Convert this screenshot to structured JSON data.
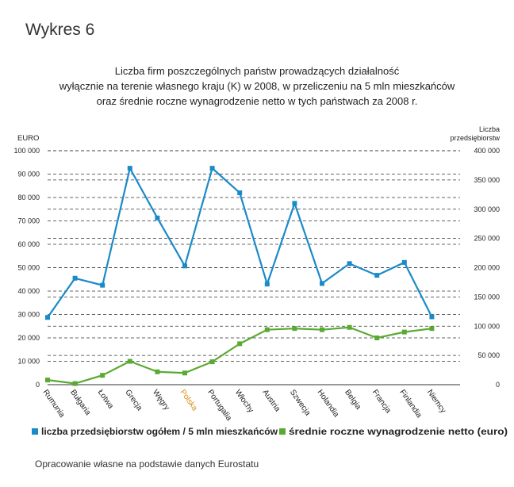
{
  "heading": "Wykres 6",
  "chart_data": {
    "type": "line",
    "title_lines": [
      "Liczba firm poszczególnych państw prowadzących działalność",
      "wyłącznie na terenie własnego kraju (K) w 2008, w przeliczeniu na 5 mln mieszkańców",
      "oraz średnie roczne wynagrodzenie netto w tych państwach za 2008 r."
    ],
    "left_axis": {
      "label": "EURO",
      "ylim": [
        0,
        100000
      ],
      "ticks": [
        0,
        10000,
        20000,
        30000,
        40000,
        50000,
        60000,
        70000,
        80000,
        90000,
        100000
      ],
      "tick_labels": [
        "0",
        "10 000",
        "20 000",
        "30 000",
        "40 000",
        "50 000",
        "60 000",
        "70 000",
        "80 000",
        "90 000",
        "100 000"
      ]
    },
    "right_axis": {
      "label_lines": [
        "Liczba",
        "przedsiębiorstw"
      ],
      "ylim": [
        0,
        400000
      ],
      "ticks": [
        0,
        50000,
        100000,
        150000,
        200000,
        250000,
        300000,
        350000,
        400000
      ],
      "tick_labels": [
        "0",
        "50 000",
        "100 000",
        "150 000",
        "200 000",
        "250 000",
        "300 000",
        "350 000",
        "400 000"
      ]
    },
    "categories": [
      "Rumunia",
      "Bułgaria",
      "Łotwa",
      "Grecja",
      "Węgry",
      "Polska",
      "Portugalia",
      "Włochy",
      "Austria",
      "Szwecja",
      "Holandia",
      "Belgia",
      "Francja",
      "Finlandia",
      "Niemcy"
    ],
    "highlight_category": "Polska",
    "highlight_color": "#d4901a",
    "series": [
      {
        "name": "liczba przedsiębiorstw ogółem / 5 mln mieszkańców",
        "axis": "right",
        "color": "#1b8ac8",
        "values": [
          115000,
          182000,
          170000,
          370000,
          285000,
          203000,
          370000,
          328000,
          172000,
          310000,
          173000,
          207000,
          187000,
          209000,
          116000
        ]
      },
      {
        "name": "średnie roczne wynagrodzenie netto (euro)",
        "axis": "left",
        "color": "#5aaa32",
        "values": [
          2000,
          500,
          4000,
          10000,
          5500,
          5000,
          9800,
          17500,
          23500,
          24000,
          23500,
          24500,
          20000,
          22500,
          24000
        ]
      }
    ],
    "grid": "dashed horizontal"
  },
  "source": "Opracowanie własne na podstawie danych Eurostatu"
}
